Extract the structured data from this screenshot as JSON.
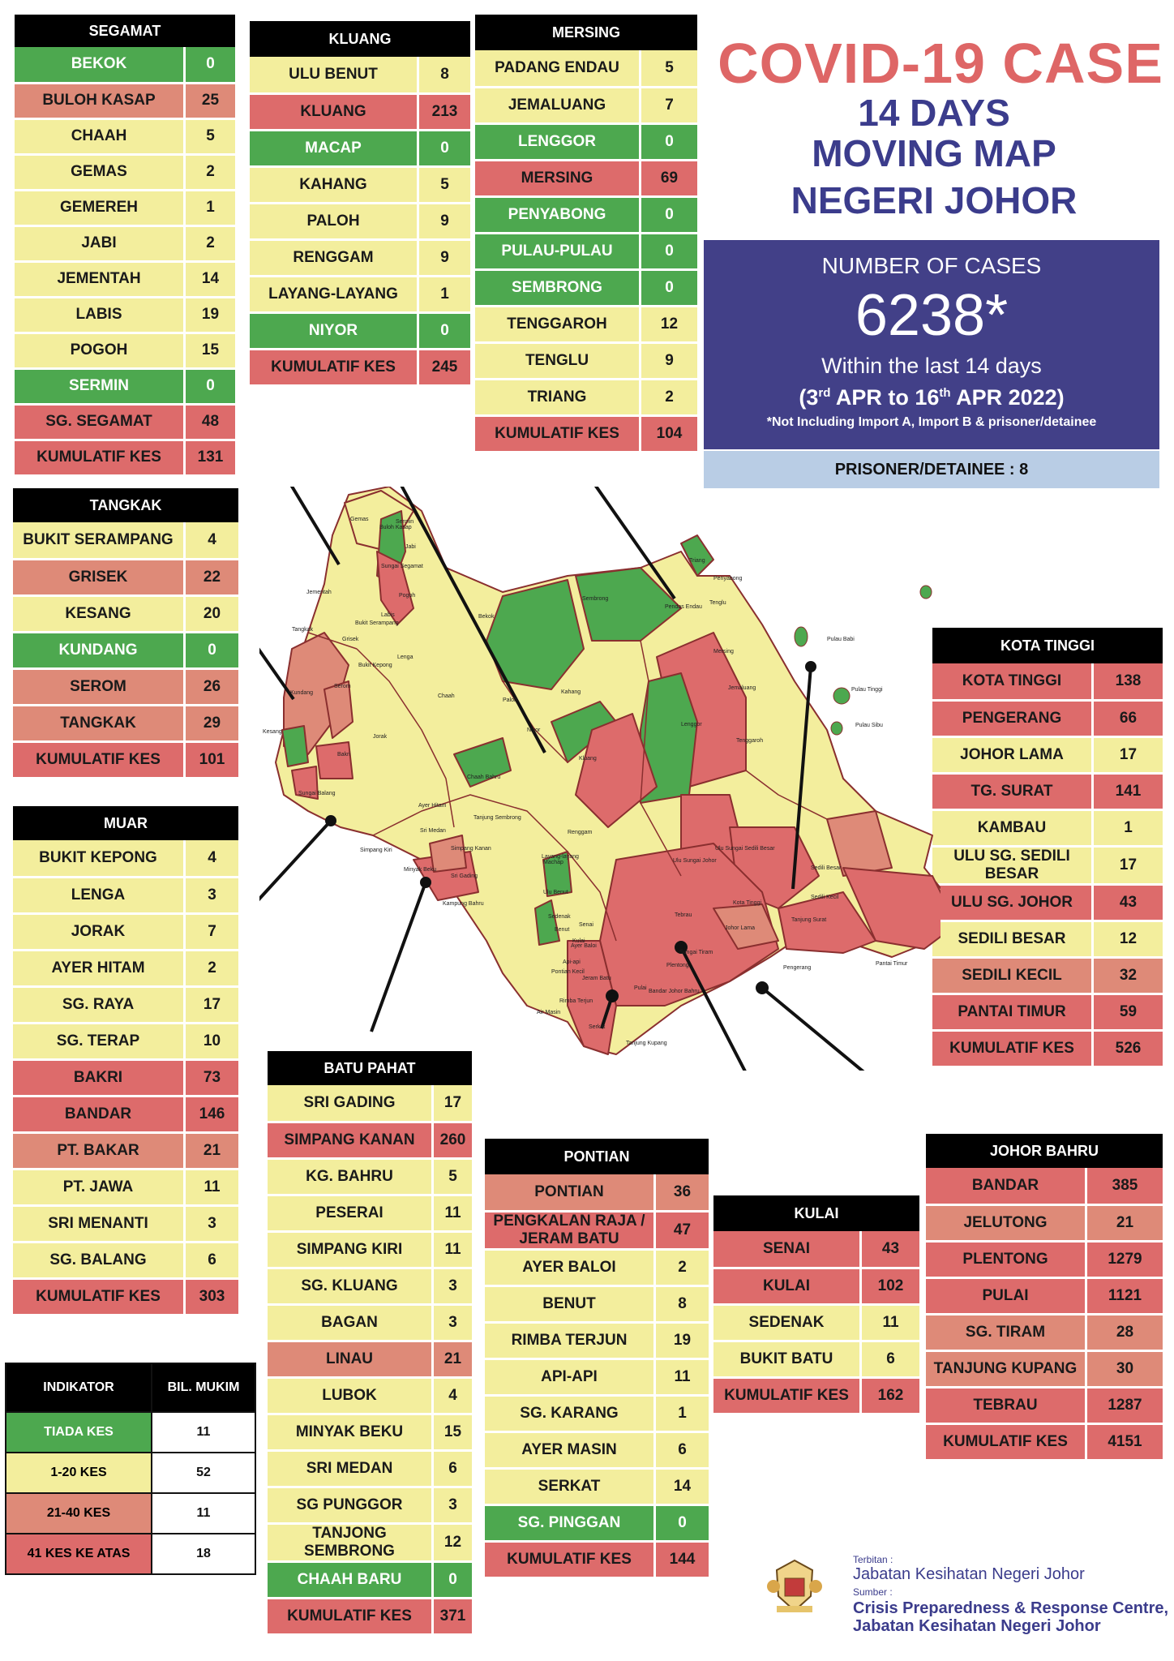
{
  "title": {
    "line1": "COVID-19 CASE",
    "line2": "14 DAYS",
    "line3": "MOVING MAP",
    "line4": "NEGERI JOHOR"
  },
  "summary": {
    "label": "NUMBER OF CASES",
    "value": "6238*",
    "within": "Within the last 14 days",
    "range": "(3rd APR to 16th APR 2022)",
    "note": "*Not Including Import A, Import B & prisoner/detainee",
    "prisoner": "PRISONER/DETAINEE : 8"
  },
  "colors": {
    "green": "#4da84f",
    "yellow": "#f3ee9d",
    "pink": "#de8a78",
    "red": "#dd6b6b",
    "navy": "#424088"
  },
  "tables": {
    "segamat": {
      "title": "SEGAMAT",
      "rows": [
        {
          "name": "BEKOK",
          "value": "0",
          "level": "green"
        },
        {
          "name": "BULOH KASAP",
          "value": "25",
          "level": "pink"
        },
        {
          "name": "CHAAH",
          "value": "5",
          "level": "yellow"
        },
        {
          "name": "GEMAS",
          "value": "2",
          "level": "yellow"
        },
        {
          "name": "GEMEREH",
          "value": "1",
          "level": "yellow"
        },
        {
          "name": "JABI",
          "value": "2",
          "level": "yellow"
        },
        {
          "name": "JEMENTAH",
          "value": "14",
          "level": "yellow"
        },
        {
          "name": "LABIS",
          "value": "19",
          "level": "yellow"
        },
        {
          "name": "POGOH",
          "value": "15",
          "level": "yellow"
        },
        {
          "name": "SERMIN",
          "value": "0",
          "level": "green"
        },
        {
          "name": "SG. SEGAMAT",
          "value": "48",
          "level": "red"
        },
        {
          "name": "KUMULATIF KES",
          "value": "131",
          "level": "red"
        }
      ]
    },
    "kluang": {
      "title": "KLUANG",
      "rows": [
        {
          "name": "ULU BENUT",
          "value": "8",
          "level": "yellow"
        },
        {
          "name": "KLUANG",
          "value": "213",
          "level": "red"
        },
        {
          "name": "MACAP",
          "value": "0",
          "level": "green"
        },
        {
          "name": "KAHANG",
          "value": "5",
          "level": "yellow"
        },
        {
          "name": "PALOH",
          "value": "9",
          "level": "yellow"
        },
        {
          "name": "RENGGAM",
          "value": "9",
          "level": "yellow"
        },
        {
          "name": "LAYANG-LAYANG",
          "value": "1",
          "level": "yellow"
        },
        {
          "name": "NIYOR",
          "value": "0",
          "level": "green"
        },
        {
          "name": "KUMULATIF KES",
          "value": "245",
          "level": "red"
        }
      ]
    },
    "mersing": {
      "title": "MERSING",
      "rows": [
        {
          "name": "PADANG ENDAU",
          "value": "5",
          "level": "yellow"
        },
        {
          "name": "JEMALUANG",
          "value": "7",
          "level": "yellow"
        },
        {
          "name": "LENGGOR",
          "value": "0",
          "level": "green"
        },
        {
          "name": "MERSING",
          "value": "69",
          "level": "red"
        },
        {
          "name": "PENYABONG",
          "value": "0",
          "level": "green"
        },
        {
          "name": "PULAU-PULAU",
          "value": "0",
          "level": "green"
        },
        {
          "name": "SEMBRONG",
          "value": "0",
          "level": "green"
        },
        {
          "name": "TENGGAROH",
          "value": "12",
          "level": "yellow"
        },
        {
          "name": "TENGLU",
          "value": "9",
          "level": "yellow"
        },
        {
          "name": "TRIANG",
          "value": "2",
          "level": "yellow"
        },
        {
          "name": "KUMULATIF KES",
          "value": "104",
          "level": "red"
        }
      ]
    },
    "tangkak": {
      "title": "TANGKAK",
      "rows": [
        {
          "name": "BUKIT SERAMPANG",
          "value": "4",
          "level": "yellow"
        },
        {
          "name": "GRISEK",
          "value": "22",
          "level": "pink"
        },
        {
          "name": "KESANG",
          "value": "20",
          "level": "yellow"
        },
        {
          "name": "KUNDANG",
          "value": "0",
          "level": "green"
        },
        {
          "name": "SEROM",
          "value": "26",
          "level": "pink"
        },
        {
          "name": "TANGKAK",
          "value": "29",
          "level": "pink"
        },
        {
          "name": "KUMULATIF KES",
          "value": "101",
          "level": "red"
        }
      ]
    },
    "muar": {
      "title": "MUAR",
      "rows": [
        {
          "name": "BUKIT KEPONG",
          "value": "4",
          "level": "yellow"
        },
        {
          "name": "LENGA",
          "value": "3",
          "level": "yellow"
        },
        {
          "name": "JORAK",
          "value": "7",
          "level": "yellow"
        },
        {
          "name": "AYER HITAM",
          "value": "2",
          "level": "yellow"
        },
        {
          "name": "SG. RAYA",
          "value": "17",
          "level": "yellow"
        },
        {
          "name": "SG. TERAP",
          "value": "10",
          "level": "yellow"
        },
        {
          "name": "BAKRI",
          "value": "73",
          "level": "red"
        },
        {
          "name": "BANDAR",
          "value": "146",
          "level": "red"
        },
        {
          "name": "PT. BAKAR",
          "value": "21",
          "level": "pink"
        },
        {
          "name": "PT. JAWA",
          "value": "11",
          "level": "yellow"
        },
        {
          "name": "SRI MENANTI",
          "value": "3",
          "level": "yellow"
        },
        {
          "name": "SG. BALANG",
          "value": "6",
          "level": "yellow"
        },
        {
          "name": "KUMULATIF KES",
          "value": "303",
          "level": "red"
        }
      ]
    },
    "kotatinggi": {
      "title": "KOTA TINGGI",
      "rows": [
        {
          "name": "KOTA TINGGI",
          "value": "138",
          "level": "red"
        },
        {
          "name": "PENGERANG",
          "value": "66",
          "level": "red"
        },
        {
          "name": "JOHOR LAMA",
          "value": "17",
          "level": "yellow"
        },
        {
          "name": "TG. SURAT",
          "value": "141",
          "level": "red"
        },
        {
          "name": "KAMBAU",
          "value": "1",
          "level": "yellow"
        },
        {
          "name": "ULU SG. SEDILI BESAR",
          "value": "17",
          "level": "yellow"
        },
        {
          "name": "ULU  SG. JOHOR",
          "value": "43",
          "level": "red"
        },
        {
          "name": "SEDILI BESAR",
          "value": "12",
          "level": "yellow"
        },
        {
          "name": "SEDILI KECIL",
          "value": "32",
          "level": "pink"
        },
        {
          "name": "PANTAI TIMUR",
          "value": "59",
          "level": "red"
        },
        {
          "name": "KUMULATIF KES",
          "value": "526",
          "level": "red"
        }
      ]
    },
    "batupahat": {
      "title": "BATU PAHAT",
      "rows": [
        {
          "name": "SRI GADING",
          "value": "17",
          "level": "yellow"
        },
        {
          "name": "SIMPANG KANAN",
          "value": "260",
          "level": "red"
        },
        {
          "name": "KG. BAHRU",
          "value": "5",
          "level": "yellow"
        },
        {
          "name": "PESERAI",
          "value": "11",
          "level": "yellow"
        },
        {
          "name": "SIMPANG KIRI",
          "value": "11",
          "level": "yellow"
        },
        {
          "name": "SG. KLUANG",
          "value": "3",
          "level": "yellow"
        },
        {
          "name": "BAGAN",
          "value": "3",
          "level": "yellow"
        },
        {
          "name": "LINAU",
          "value": "21",
          "level": "pink"
        },
        {
          "name": "LUBOK",
          "value": "4",
          "level": "yellow"
        },
        {
          "name": "MINYAK BEKU",
          "value": "15",
          "level": "yellow"
        },
        {
          "name": "SRI MEDAN",
          "value": "6",
          "level": "yellow"
        },
        {
          "name": "SG PUNGGOR",
          "value": "3",
          "level": "yellow"
        },
        {
          "name": "TANJONG SEMBRONG",
          "value": "12",
          "level": "yellow"
        },
        {
          "name": "CHAAH BARU",
          "value": "0",
          "level": "green"
        },
        {
          "name": "KUMULATIF KES",
          "value": "371",
          "level": "red"
        }
      ]
    },
    "pontian": {
      "title": "PONTIAN",
      "rows": [
        {
          "name": "PONTIAN",
          "value": "36",
          "level": "pink"
        },
        {
          "name": "PENGKALAN RAJA / JERAM BATU",
          "value": "47",
          "level": "red"
        },
        {
          "name": "AYER BALOI",
          "value": "2",
          "level": "yellow"
        },
        {
          "name": "BENUT",
          "value": "8",
          "level": "yellow"
        },
        {
          "name": "RIMBA TERJUN",
          "value": "19",
          "level": "yellow"
        },
        {
          "name": "API-API",
          "value": "11",
          "level": "yellow"
        },
        {
          "name": "SG. KARANG",
          "value": "1",
          "level": "yellow"
        },
        {
          "name": "AYER MASIN",
          "value": "6",
          "level": "yellow"
        },
        {
          "name": "SERKAT",
          "value": "14",
          "level": "yellow"
        },
        {
          "name": "SG. PINGGAN",
          "value": "0",
          "level": "green"
        },
        {
          "name": "KUMULATIF KES",
          "value": "144",
          "level": "red"
        }
      ]
    },
    "kulai": {
      "title": "KULAI",
      "rows": [
        {
          "name": "SENAI",
          "value": "43",
          "level": "red"
        },
        {
          "name": "KULAI",
          "value": "102",
          "level": "red"
        },
        {
          "name": "SEDENAK",
          "value": "11",
          "level": "yellow"
        },
        {
          "name": "BUKIT BATU",
          "value": "6",
          "level": "yellow"
        },
        {
          "name": "KUMULATIF KES",
          "value": "162",
          "level": "red"
        }
      ]
    },
    "johorbahru": {
      "title": "JOHOR BAHRU",
      "rows": [
        {
          "name": "BANDAR",
          "value": "385",
          "level": "red"
        },
        {
          "name": "JELUTONG",
          "value": "21",
          "level": "pink"
        },
        {
          "name": "PLENTONG",
          "value": "1279",
          "level": "red"
        },
        {
          "name": "PULAI",
          "value": "1121",
          "level": "red"
        },
        {
          "name": "SG. TIRAM",
          "value": "28",
          "level": "pink"
        },
        {
          "name": "TANJUNG KUPANG",
          "value": "30",
          "level": "pink"
        },
        {
          "name": "TEBRAU",
          "value": "1287",
          "level": "red"
        },
        {
          "name": "KUMULATIF KES",
          "value": "4151",
          "level": "red"
        }
      ]
    }
  },
  "legend": {
    "header_ind": "INDIKATOR",
    "header_bil": "BIL. MUKIM",
    "rows": [
      {
        "label": "TIADA KES",
        "value": "11",
        "level": "green"
      },
      {
        "label": "1-20 KES",
        "value": "52",
        "level": "yellow"
      },
      {
        "label": "21-40 KES",
        "value": "11",
        "level": "pink"
      },
      {
        "label": "41 KES KE ATAS",
        "value": "18",
        "level": "red"
      }
    ]
  },
  "map_labels": [
    "Gemas",
    "Buloh Kasap",
    "Sermin",
    "Jabi",
    "Sungai Segamat",
    "Pogoh",
    "Jementah",
    "Labis",
    "Bukit Serampang",
    "Tangkak",
    "Grisek",
    "Bukit Kepong",
    "Lenga",
    "Serom",
    "Kundang",
    "Kesang",
    "Jorak",
    "Chaah",
    "Bekok",
    "Paloh",
    "Niyor",
    "Kahang",
    "Sembrong",
    "Penyabong",
    "Triang",
    "Tenglu",
    "Pendas Endau",
    "Mersing",
    "Lenggor",
    "Jemaluang",
    "Pulau Babi",
    "Pulau Tinggi",
    "Pulau Sibu",
    "Tenggaroh",
    "Kluang",
    "Renggam",
    "Chaah Bahru",
    "Ayer Hitam",
    "Sri Medan",
    "Tanjung Sembrong",
    "Bakri",
    "Sungai Balang",
    "Simpang Kiri",
    "Simpang Kanan",
    "Sri Gading",
    "Machap",
    "Ulu Benut",
    "Layang-layang",
    "Kampung Bahru",
    "Minyak Beku",
    "Sedenak",
    "Senai",
    "Kulai",
    "Benut",
    "Ayer Baloi",
    "Api-api",
    "Pontian Kecil",
    "Jeram Batu",
    "Rimba Terjun",
    "Air Masin",
    "Serkat",
    "Tanjung Kupang",
    "Pulai",
    "Bandar Johor Bahru",
    "Plentong",
    "Sungai Tiram",
    "Tebrau",
    "Kota Tinggi",
    "Johor Lama",
    "Ulu Sungai Johor",
    "Ulu Sungai Sedili Besar",
    "Sedili Besar",
    "Sedili Kecil",
    "Tanjung Surat",
    "Pengerang",
    "Pantai Timur",
    "Kambau"
  ],
  "footer": {
    "terbitan_label": "Terbitan :",
    "terbitan": "Jabatan Kesihatan Negeri Johor",
    "sumber_label": "Sumber :",
    "sumber1": "Crisis Preparedness & Response Centre,",
    "sumber2": "Jabatan Kesihatan Negeri Johor"
  }
}
